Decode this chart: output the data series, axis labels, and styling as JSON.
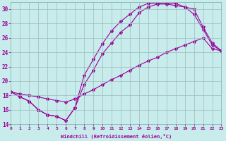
{
  "xlabel": "Windchill (Refroidissement éolien,°C)",
  "bg_color": "#c8ecec",
  "line_color": "#990099",
  "grid_color": "#aacccc",
  "xlim": [
    0,
    23
  ],
  "ylim": [
    14,
    31
  ],
  "xticks": [
    0,
    1,
    2,
    3,
    4,
    5,
    6,
    7,
    8,
    9,
    10,
    11,
    12,
    13,
    14,
    15,
    16,
    17,
    18,
    19,
    20,
    21,
    22,
    23
  ],
  "yticks": [
    14,
    16,
    18,
    20,
    22,
    24,
    26,
    28,
    30
  ],
  "line1_x": [
    0,
    1,
    2,
    3,
    4,
    5,
    6,
    7,
    8,
    9,
    10,
    11,
    12,
    13,
    14,
    15,
    16,
    17,
    18,
    19,
    20,
    21,
    22,
    23
  ],
  "line1_y": [
    18.5,
    17.8,
    17.2,
    16.0,
    15.3,
    15.1,
    14.5,
    16.3,
    19.5,
    21.5,
    23.8,
    25.3,
    26.8,
    27.8,
    29.5,
    30.3,
    30.7,
    30.7,
    30.5,
    30.3,
    29.3,
    27.2,
    25.0,
    24.2
  ],
  "line2_x": [
    0,
    1,
    2,
    3,
    4,
    5,
    6,
    7,
    8,
    9,
    10,
    11,
    12,
    13,
    14,
    15,
    16,
    17,
    18,
    19,
    20,
    21,
    22,
    23
  ],
  "line2_y": [
    18.5,
    17.8,
    17.2,
    16.0,
    15.3,
    15.1,
    14.5,
    16.3,
    20.8,
    23.0,
    25.2,
    27.0,
    28.3,
    29.3,
    30.3,
    30.8,
    30.8,
    30.8,
    30.8,
    30.3,
    30.0,
    27.5,
    25.3,
    24.2
  ],
  "line3_x": [
    0,
    1,
    2,
    3,
    4,
    5,
    6,
    7,
    8,
    9,
    10,
    11,
    12,
    13,
    14,
    15,
    16,
    17,
    18,
    19,
    20,
    21,
    22,
    23
  ],
  "line3_y": [
    18.5,
    18.2,
    18.0,
    17.8,
    17.5,
    17.3,
    17.1,
    17.5,
    18.2,
    18.8,
    19.5,
    20.2,
    20.8,
    21.5,
    22.2,
    22.8,
    23.3,
    24.0,
    24.5,
    25.0,
    25.5,
    26.0,
    24.5,
    24.2
  ]
}
